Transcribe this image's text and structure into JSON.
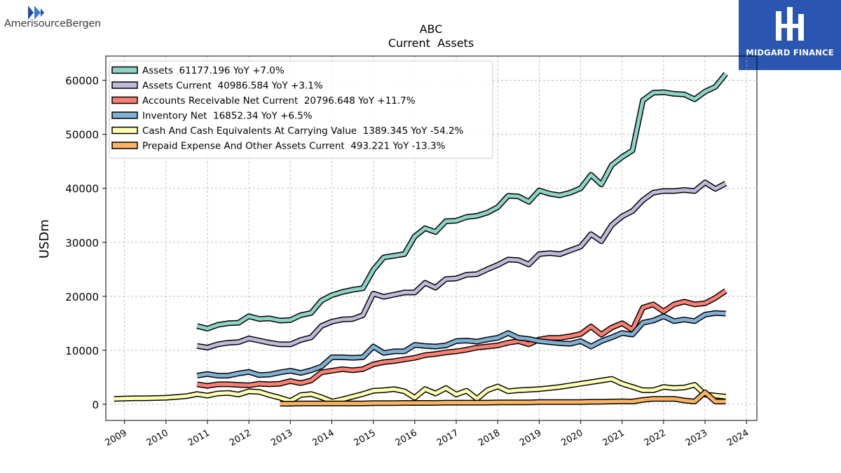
{
  "logos": {
    "left_text": "AmerisourceBergen",
    "right_text": "MIDGARD FINANCE"
  },
  "chart_data": {
    "type": "line",
    "title": "ABC",
    "subtitle": "Current  Assets",
    "ylabel": "USDm",
    "xlabel": "",
    "xlim": [
      2008.55,
      2024.25
    ],
    "ylim": [
      -3000,
      64500
    ],
    "yticks": [
      0,
      10000,
      20000,
      30000,
      40000,
      50000,
      60000
    ],
    "xticks": [
      "2009",
      "2010",
      "2011",
      "2012",
      "2013",
      "2014",
      "2015",
      "2016",
      "2017",
      "2018",
      "2019",
      "2020",
      "2021",
      "2022",
      "2023",
      "2024"
    ],
    "grid": true,
    "legend_position": "top-left",
    "series": [
      {
        "name": "Assets  61177.196 YoY +7.0%",
        "color": "#8dd3c7",
        "x": [
          2010.75,
          2011.0,
          2011.25,
          2011.5,
          2011.75,
          2012.0,
          2012.25,
          2012.5,
          2012.75,
          2013.0,
          2013.25,
          2013.5,
          2013.75,
          2014.0,
          2014.25,
          2014.5,
          2014.75,
          2015.0,
          2015.25,
          2015.5,
          2015.75,
          2016.0,
          2016.25,
          2016.5,
          2016.75,
          2017.0,
          2017.25,
          2017.5,
          2017.75,
          2018.0,
          2018.25,
          2018.5,
          2018.75,
          2019.0,
          2019.25,
          2019.5,
          2019.75,
          2020.0,
          2020.25,
          2020.5,
          2020.75,
          2021.0,
          2021.25,
          2021.5,
          2021.75,
          2022.0,
          2022.25,
          2022.5,
          2022.75,
          2023.0,
          2023.25,
          2023.5
        ],
        "values": [
          14500,
          14000,
          14700,
          15000,
          15100,
          16300,
          15800,
          15900,
          15500,
          15600,
          16500,
          16900,
          19200,
          20200,
          20800,
          21200,
          21500,
          24900,
          27200,
          27500,
          27800,
          31100,
          32600,
          31900,
          33900,
          34000,
          34700,
          34900,
          35500,
          36500,
          38600,
          38500,
          37500,
          39600,
          39000,
          38700,
          39200,
          40000,
          42500,
          40700,
          44300,
          45800,
          47000,
          56300,
          57700,
          57800,
          57500,
          57400,
          56500,
          57900,
          58800,
          61200
        ]
      },
      {
        "name": "Assets Current  40986.584 YoY +3.1%",
        "color": "#bebada",
        "x": [
          2010.75,
          2011.0,
          2011.25,
          2011.5,
          2011.75,
          2012.0,
          2012.25,
          2012.5,
          2012.75,
          2013.0,
          2013.25,
          2013.5,
          2013.75,
          2014.0,
          2014.25,
          2014.5,
          2014.75,
          2015.0,
          2015.25,
          2015.5,
          2015.75,
          2016.0,
          2016.25,
          2016.5,
          2016.75,
          2017.0,
          2017.25,
          2017.5,
          2017.75,
          2018.0,
          2018.25,
          2018.5,
          2018.75,
          2019.0,
          2019.25,
          2019.5,
          2019.75,
          2020.0,
          2020.25,
          2020.5,
          2020.75,
          2021.0,
          2021.25,
          2021.5,
          2021.75,
          2022.0,
          2022.25,
          2022.5,
          2022.75,
          2023.0,
          2023.25,
          2023.5
        ],
        "values": [
          10800,
          10500,
          11100,
          11400,
          11500,
          12200,
          11800,
          11400,
          11100,
          11100,
          11900,
          12400,
          14500,
          15300,
          15700,
          15800,
          16500,
          20500,
          19900,
          20300,
          20700,
          20700,
          22500,
          21600,
          23200,
          23300,
          24000,
          24100,
          25000,
          25800,
          26800,
          26700,
          25900,
          27800,
          28000,
          27800,
          28500,
          29200,
          31500,
          30200,
          33200,
          34800,
          35800,
          37800,
          39200,
          39500,
          39500,
          39700,
          39500,
          41100,
          39900,
          40900
        ]
      },
      {
        "name": "Accounts Receivable Net Current  20796.648 YoY +11.7%",
        "color": "#fb8072",
        "x": [
          2010.75,
          2011.0,
          2011.25,
          2011.5,
          2011.75,
          2012.0,
          2012.25,
          2012.5,
          2012.75,
          2013.0,
          2013.25,
          2013.5,
          2013.75,
          2014.0,
          2014.25,
          2014.5,
          2014.75,
          2015.0,
          2015.25,
          2015.5,
          2015.75,
          2016.0,
          2016.25,
          2016.5,
          2016.75,
          2017.0,
          2017.25,
          2017.5,
          2017.75,
          2018.0,
          2018.25,
          2018.5,
          2018.75,
          2019.0,
          2019.25,
          2019.5,
          2019.75,
          2020.0,
          2020.25,
          2020.5,
          2020.75,
          2021.0,
          2021.25,
          2021.5,
          2021.75,
          2022.0,
          2022.25,
          2022.5,
          2022.75,
          2023.0,
          2023.25,
          2023.5
        ],
        "values": [
          3700,
          3400,
          3700,
          3700,
          3600,
          3500,
          3800,
          3700,
          3800,
          4300,
          3900,
          4400,
          5900,
          6200,
          6500,
          6300,
          6500,
          7400,
          7800,
          8000,
          8300,
          8600,
          9100,
          9300,
          9600,
          9800,
          10100,
          10500,
          10700,
          10900,
          11400,
          11700,
          11100,
          12000,
          12300,
          12300,
          12600,
          13000,
          14400,
          12900,
          14200,
          15000,
          13800,
          17900,
          18500,
          17200,
          18500,
          19000,
          18500,
          18700,
          19700,
          21000
        ]
      },
      {
        "name": "Inventory Net  16852.34 YoY +6.5%",
        "color": "#80b1d3",
        "x": [
          2010.75,
          2011.0,
          2011.25,
          2011.5,
          2011.75,
          2012.0,
          2012.25,
          2012.5,
          2012.75,
          2013.0,
          2013.25,
          2013.5,
          2013.75,
          2014.0,
          2014.25,
          2014.5,
          2014.75,
          2015.0,
          2015.25,
          2015.5,
          2015.75,
          2016.0,
          2016.25,
          2016.5,
          2016.75,
          2017.0,
          2017.25,
          2017.5,
          2017.75,
          2018.0,
          2018.25,
          2018.5,
          2018.75,
          2019.0,
          2019.25,
          2019.5,
          2019.75,
          2020.0,
          2020.25,
          2020.5,
          2020.75,
          2021.0,
          2021.25,
          2021.5,
          2021.75,
          2022.0,
          2022.25,
          2022.5,
          2022.75,
          2023.0,
          2023.25,
          2023.5
        ],
        "values": [
          5300,
          5600,
          5300,
          5300,
          5700,
          6000,
          5400,
          5500,
          5900,
          6200,
          5800,
          6300,
          7000,
          8700,
          8700,
          8600,
          8700,
          10700,
          9500,
          9800,
          9800,
          11000,
          10800,
          10700,
          10900,
          11700,
          11800,
          11600,
          12000,
          12300,
          13200,
          12300,
          12100,
          11700,
          11500,
          11300,
          11200,
          11700,
          10700,
          11700,
          12400,
          13200,
          12900,
          15100,
          15500,
          16300,
          15400,
          15700,
          15400,
          16600,
          16900,
          16800
        ]
      },
      {
        "name": "Cash And Cash Equivalents At Carrying Value  1389.345 YoY -54.2%",
        "color": "#ffffb3",
        "x": [
          2008.75,
          2009.0,
          2009.25,
          2009.5,
          2009.75,
          2010.0,
          2010.25,
          2010.5,
          2010.75,
          2011.0,
          2011.25,
          2011.5,
          2011.75,
          2012.0,
          2012.25,
          2012.5,
          2012.75,
          2013.0,
          2013.25,
          2013.5,
          2013.75,
          2014.0,
          2014.25,
          2014.5,
          2014.75,
          2015.0,
          2015.25,
          2015.5,
          2015.75,
          2016.0,
          2016.25,
          2016.5,
          2016.75,
          2017.0,
          2017.25,
          2017.5,
          2017.75,
          2018.0,
          2018.25,
          2018.5,
          2018.75,
          2019.0,
          2019.25,
          2019.5,
          2019.75,
          2020.0,
          2020.25,
          2020.5,
          2020.75,
          2021.0,
          2021.25,
          2021.5,
          2021.75,
          2022.0,
          2022.25,
          2022.5,
          2022.75,
          2023.0,
          2023.25,
          2023.5
        ],
        "values": [
          1000,
          1050,
          1100,
          1100,
          1150,
          1200,
          1350,
          1500,
          1900,
          1600,
          2000,
          2100,
          1800,
          2400,
          2300,
          1700,
          1200,
          600,
          1700,
          1900,
          1300,
          500,
          900,
          1400,
          1900,
          2500,
          2600,
          2800,
          2400,
          1200,
          2800,
          2000,
          3000,
          1800,
          2500,
          1000,
          2600,
          3300,
          2400,
          2600,
          2700,
          2800,
          3000,
          3200,
          3500,
          3800,
          4100,
          4400,
          4700,
          3800,
          3200,
          2600,
          2600,
          3200,
          3000,
          3100,
          3600,
          1800,
          1600,
          1400
        ]
      },
      {
        "name": "Prepaid Expense And Other Assets Current  493.221 YoY -13.3%",
        "color": "#fdb462",
        "x": [
          2012.75,
          2013.0,
          2013.25,
          2013.5,
          2013.75,
          2014.0,
          2014.25,
          2014.5,
          2014.75,
          2015.0,
          2015.25,
          2015.5,
          2015.75,
          2016.0,
          2016.25,
          2016.5,
          2016.75,
          2017.0,
          2017.25,
          2017.5,
          2017.75,
          2018.0,
          2018.25,
          2018.5,
          2018.75,
          2019.0,
          2019.25,
          2019.5,
          2019.75,
          2020.0,
          2020.25,
          2020.5,
          2020.75,
          2021.0,
          2021.25,
          2021.5,
          2021.75,
          2022.0,
          2022.25,
          2022.5,
          2022.75,
          2023.0,
          2023.25,
          2023.5
        ],
        "values": [
          100,
          100,
          150,
          150,
          150,
          150,
          150,
          150,
          150,
          200,
          200,
          200,
          250,
          250,
          250,
          250,
          300,
          300,
          300,
          300,
          300,
          350,
          350,
          350,
          350,
          400,
          400,
          400,
          400,
          400,
          450,
          450,
          500,
          550,
          500,
          800,
          1000,
          1000,
          1000,
          700,
          500,
          2200,
          500,
          500
        ]
      }
    ]
  }
}
